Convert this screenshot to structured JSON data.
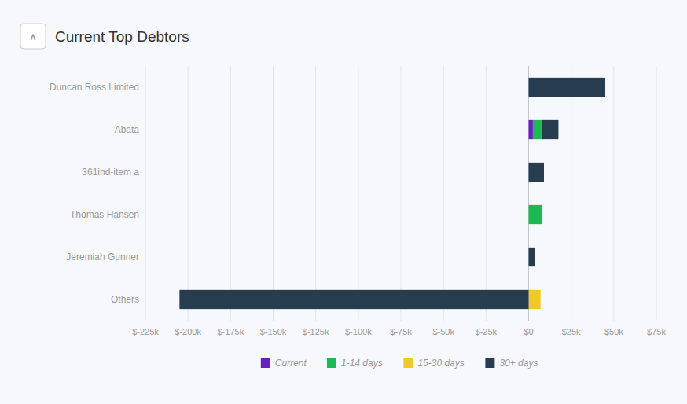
{
  "chart_data": {
    "type": "bar",
    "orientation": "horizontal",
    "stacked": true,
    "title": "Current Top Debtors",
    "annotations": [
      "∧"
    ],
    "categories": [
      "Duncan Ross Limited",
      "Abata",
      "361ind-item a",
      "Thomas Hansen",
      "Jeremiah Gunner",
      "Others"
    ],
    "series": [
      {
        "name": "Current",
        "color": "#6a1fc2",
        "values": [
          0,
          2500,
          0,
          0,
          0,
          0
        ]
      },
      {
        "name": "1-14 days",
        "color": "#1db954",
        "values": [
          0,
          5000,
          0,
          8000,
          0,
          0
        ]
      },
      {
        "name": "15-30 days",
        "color": "#f0c929",
        "values": [
          0,
          0,
          0,
          0,
          0,
          7000
        ]
      },
      {
        "name": "30+ days",
        "color": "#253d4e",
        "values": [
          45000,
          10000,
          9000,
          0,
          3500,
          -205000
        ]
      }
    ],
    "xlim": [
      -225000,
      75000
    ],
    "xticks": [
      {
        "value": -225000,
        "label": "$-225k"
      },
      {
        "value": -200000,
        "label": "$-200k"
      },
      {
        "value": -175000,
        "label": "$-175k"
      },
      {
        "value": -150000,
        "label": "$-150k"
      },
      {
        "value": -125000,
        "label": "$-125k"
      },
      {
        "value": -100000,
        "label": "$-100k"
      },
      {
        "value": -75000,
        "label": "$-75k"
      },
      {
        "value": -50000,
        "label": "$-50k"
      },
      {
        "value": -25000,
        "label": "$-25k"
      },
      {
        "value": 0,
        "label": "$0"
      },
      {
        "value": 25000,
        "label": "$25k"
      },
      {
        "value": 50000,
        "label": "$50k"
      },
      {
        "value": 75000,
        "label": "$75k"
      }
    ],
    "grid": true,
    "legend": "bottom"
  }
}
